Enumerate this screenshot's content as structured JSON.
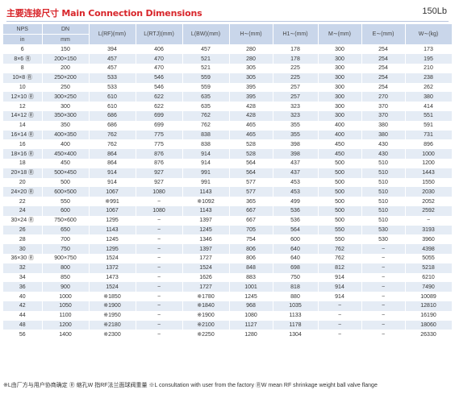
{
  "header": {
    "title": "主要连接尺寸 Main Connection Dimensions",
    "pressure_class": "150Lb"
  },
  "table": {
    "columns": [
      {
        "top": "NPS",
        "bottom": "in"
      },
      {
        "top": "DN",
        "bottom": "mm"
      },
      {
        "top": "L(RF)(mm)",
        "bottom": ""
      },
      {
        "top": "L(RTJ)(mm)",
        "bottom": ""
      },
      {
        "top": "L(BW)(mm)",
        "bottom": ""
      },
      {
        "top": "H∼(mm)",
        "bottom": ""
      },
      {
        "top": "H1∼(mm)",
        "bottom": ""
      },
      {
        "top": "M∼(mm)",
        "bottom": ""
      },
      {
        "top": "E∼(mm)",
        "bottom": ""
      },
      {
        "top": "W∼(kg)",
        "bottom": ""
      }
    ],
    "rows": [
      [
        "6",
        "150",
        "394",
        "406",
        "457",
        "280",
        "178",
        "300",
        "254",
        "173"
      ],
      [
        "8×6 Ⓡ",
        "200×150",
        "457",
        "470",
        "521",
        "280",
        "178",
        "300",
        "254",
        "195"
      ],
      [
        "8",
        "200",
        "457",
        "470",
        "521",
        "305",
        "225",
        "300",
        "254",
        "210"
      ],
      [
        "10×8 Ⓡ",
        "250×200",
        "533",
        "546",
        "559",
        "305",
        "225",
        "300",
        "254",
        "238"
      ],
      [
        "10",
        "250",
        "533",
        "546",
        "559",
        "395",
        "257",
        "300",
        "254",
        "262"
      ],
      [
        "12×10 Ⓡ",
        "300×250",
        "610",
        "622",
        "635",
        "395",
        "257",
        "300",
        "270",
        "380"
      ],
      [
        "12",
        "300",
        "610",
        "622",
        "635",
        "428",
        "323",
        "300",
        "370",
        "414"
      ],
      [
        "14×12 Ⓡ",
        "350×300",
        "686",
        "699",
        "762",
        "428",
        "323",
        "300",
        "370",
        "551"
      ],
      [
        "14",
        "350",
        "686",
        "699",
        "762",
        "465",
        "355",
        "400",
        "380",
        "591"
      ],
      [
        "16×14 Ⓡ",
        "400×350",
        "762",
        "775",
        "838",
        "465",
        "355",
        "400",
        "380",
        "731"
      ],
      [
        "16",
        "400",
        "762",
        "775",
        "838",
        "528",
        "398",
        "450",
        "430",
        "896"
      ],
      [
        "18×16 Ⓡ",
        "450×400",
        "864",
        "876",
        "914",
        "528",
        "398",
        "450",
        "430",
        "1000"
      ],
      [
        "18",
        "450",
        "864",
        "876",
        "914",
        "564",
        "437",
        "500",
        "510",
        "1200"
      ],
      [
        "20×18 Ⓡ",
        "500×450",
        "914",
        "927",
        "991",
        "564",
        "437",
        "500",
        "510",
        "1443"
      ],
      [
        "20",
        "500",
        "914",
        "927",
        "991",
        "577",
        "453",
        "500",
        "510",
        "1550"
      ],
      [
        "24×20 Ⓡ",
        "600×500",
        "1067",
        "1080",
        "1143",
        "577",
        "453",
        "500",
        "510",
        "2030"
      ],
      [
        "22",
        "550",
        "※991",
        "−",
        "※1092",
        "365",
        "499",
        "500",
        "510",
        "2052"
      ],
      [
        "24",
        "600",
        "1067",
        "1080",
        "1143",
        "667",
        "536",
        "500",
        "510",
        "2592"
      ],
      [
        "30×24 Ⓡ",
        "750×600",
        "1295",
        "−",
        "1397",
        "667",
        "536",
        "500",
        "510",
        "−"
      ],
      [
        "26",
        "650",
        "1143",
        "−",
        "1245",
        "705",
        "564",
        "550",
        "530",
        "3193"
      ],
      [
        "28",
        "700",
        "1245",
        "−",
        "1346",
        "754",
        "600",
        "550",
        "530",
        "3960"
      ],
      [
        "30",
        "750",
        "1295",
        "−",
        "1397",
        "806",
        "640",
        "762",
        "−",
        "4398"
      ],
      [
        "36×30 Ⓡ",
        "900×750",
        "1524",
        "−",
        "1727",
        "806",
        "640",
        "762",
        "−",
        "5055"
      ],
      [
        "32",
        "800",
        "1372",
        "−",
        "1524",
        "848",
        "698",
        "812",
        "−",
        "5218"
      ],
      [
        "34",
        "850",
        "1473",
        "−",
        "1626",
        "883",
        "750",
        "914",
        "−",
        "6210"
      ],
      [
        "36",
        "900",
        "1524",
        "−",
        "1727",
        "1001",
        "818",
        "914",
        "−",
        "7490"
      ],
      [
        "40",
        "1000",
        "※1850",
        "−",
        "※1780",
        "1245",
        "880",
        "914",
        "−",
        "10089"
      ],
      [
        "42",
        "1050",
        "※1900",
        "−",
        "※1840",
        "968",
        "1035",
        "−",
        "−",
        "12810"
      ],
      [
        "44",
        "1100",
        "※1950",
        "−",
        "※1900",
        "1080",
        "1133",
        "−",
        "−",
        "16190"
      ],
      [
        "48",
        "1200",
        "※2180",
        "−",
        "※2100",
        "1127",
        "1178",
        "−",
        "−",
        "18060"
      ],
      [
        "56",
        "1400",
        "※2300",
        "−",
        "※2250",
        "1280",
        "1304",
        "−",
        "−",
        "26330"
      ]
    ]
  },
  "footnote": "※L由厂方与用户协商确定 Ⓡ 缩孔W 指RF法兰面球阀重量   ※L consultation with user from the factory ⓇW mean RF shrinkage weight ball valve flange"
}
